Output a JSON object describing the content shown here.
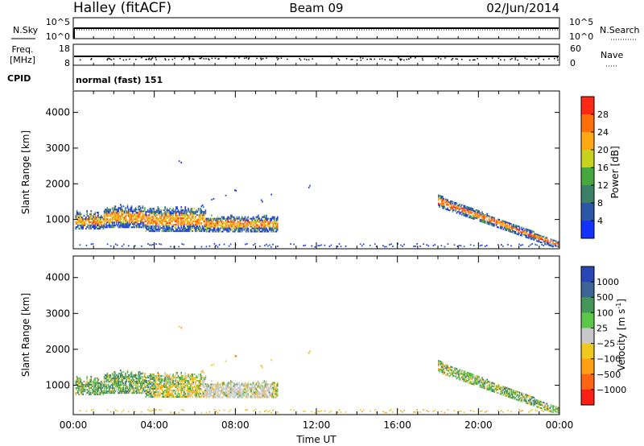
{
  "header": {
    "station": "Halley (fitACF)",
    "beam": "Beam 09",
    "date": "02/Jun/2014"
  },
  "status_panels": {
    "nsky": {
      "label": "N.Sky",
      "right_label": "N.Search",
      "left_ticks": [
        "10^5",
        "10^0"
      ],
      "right_ticks": [
        "10^5",
        "10^0"
      ]
    },
    "freq": {
      "label_top": "Freq.",
      "label_bottom": "[MHz]",
      "right_label": "Nave",
      "left_ticks": [
        "18",
        "8"
      ],
      "right_ticks": [
        "60",
        "0"
      ]
    },
    "cpid": {
      "label": "CPID",
      "mode": "normal (fast) 151"
    }
  },
  "chart_data": [
    {
      "type": "heatmap",
      "name": "power",
      "ylabel": "Slant Range [km]",
      "ylim": [
        180,
        4600
      ],
      "yticks": [
        1000,
        2000,
        3000,
        4000
      ],
      "xlim_hours": [
        0,
        24
      ],
      "colorbar": {
        "label": "Power [dB]",
        "ticks": [
          "4",
          "8",
          "12",
          "16",
          "20",
          "24",
          "28"
        ],
        "colors": [
          "#1432ff",
          "#2c56a8",
          "#3b8068",
          "#46a93f",
          "#c8d21e",
          "#ffa814",
          "#ff6e0a",
          "#ff2814"
        ]
      },
      "features": [
        {
          "name": "main echo band",
          "time_h": [
            0.1,
            10.1
          ],
          "range_km": [
            700,
            1600
          ],
          "power_db": [
            4,
            28
          ]
        },
        {
          "name": "isolated echoes",
          "time_h": [
            4.0,
            11.7
          ],
          "range_km": [
            1100,
            2750
          ],
          "power_db": [
            4,
            12
          ]
        },
        {
          "name": "ground scatter line",
          "time_h": [
            0.3,
            23.7
          ],
          "range_km": [
            190,
            320
          ],
          "power_db": [
            4,
            8
          ]
        },
        {
          "name": "evening band",
          "time_h": [
            18.0,
            24.0
          ],
          "range_km": [
            250,
            1700
          ],
          "power_db": [
            4,
            28
          ]
        }
      ]
    },
    {
      "type": "heatmap",
      "name": "velocity",
      "ylabel": "Slant Range [km]",
      "ylim": [
        180,
        4600
      ],
      "yticks": [
        1000,
        2000,
        3000,
        4000
      ],
      "xlim_hours": [
        0,
        24
      ],
      "xlabel": "Time UT",
      "xticks": [
        "00:00",
        "04:00",
        "08:00",
        "12:00",
        "16:00",
        "20:00",
        "00:00"
      ],
      "colorbar": {
        "label": "Velocity [m s",
        "label_sup": "-1",
        "label_end": "]",
        "ticks": [
          "1000",
          "500",
          "100",
          "25",
          "−25",
          "−100",
          "−500",
          "−1000"
        ],
        "colors": [
          "#2846b4",
          "#3c6496",
          "#46965a",
          "#5ac846",
          "#c8c8c8",
          "#f0c81e",
          "#ffa014",
          "#ff6414",
          "#ff1e14"
        ]
      },
      "features": [
        {
          "name": "main echo band",
          "time_h": [
            0.1,
            10.1
          ],
          "range_km": [
            700,
            1600
          ],
          "velocity": "mostly -100 to 100, grey near zero after 06:30"
        },
        {
          "name": "isolated echoes",
          "time_h": [
            4.0,
            11.7
          ],
          "range_km": [
            1100,
            2750
          ],
          "velocity": "-100 to -500"
        },
        {
          "name": "ground scatter line",
          "time_h": [
            0.3,
            23.7
          ],
          "range_km": [
            190,
            320
          ],
          "velocity": "-25 to -100"
        },
        {
          "name": "evening band",
          "time_h": [
            18.0,
            24.0
          ],
          "range_km": [
            250,
            1700
          ],
          "velocity": "-100 to 100"
        }
      ]
    }
  ]
}
